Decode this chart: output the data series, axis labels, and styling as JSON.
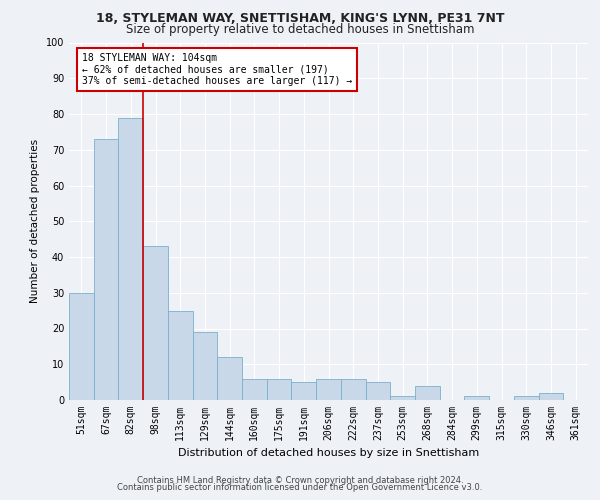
{
  "title_line1": "18, STYLEMAN WAY, SNETTISHAM, KING'S LYNN, PE31 7NT",
  "title_line2": "Size of property relative to detached houses in Snettisham",
  "xlabel": "Distribution of detached houses by size in Snettisham",
  "ylabel": "Number of detached properties",
  "categories": [
    "51sqm",
    "67sqm",
    "82sqm",
    "98sqm",
    "113sqm",
    "129sqm",
    "144sqm",
    "160sqm",
    "175sqm",
    "191sqm",
    "206sqm",
    "222sqm",
    "237sqm",
    "253sqm",
    "268sqm",
    "284sqm",
    "299sqm",
    "315sqm",
    "330sqm",
    "346sqm",
    "361sqm"
  ],
  "values": [
    30,
    73,
    79,
    43,
    25,
    19,
    12,
    6,
    6,
    5,
    6,
    6,
    5,
    1,
    4,
    0,
    1,
    0,
    1,
    2,
    0
  ],
  "bar_color": "#c8d8e8",
  "bar_edge_color": "#7ab0cc",
  "background_color": "#eef2f7",
  "grid_color": "#ffffff",
  "annotation_text": "18 STYLEMAN WAY: 104sqm\n← 62% of detached houses are smaller (197)\n37% of semi-detached houses are larger (117) →",
  "annotation_box_color": "#ffffff",
  "annotation_box_edge": "#cc0000",
  "vline_color": "#cc0000",
  "ylim": [
    0,
    100
  ],
  "yticks": [
    0,
    10,
    20,
    30,
    40,
    50,
    60,
    70,
    80,
    90,
    100
  ],
  "footer_line1": "Contains HM Land Registry data © Crown copyright and database right 2024.",
  "footer_line2": "Contains public sector information licensed under the Open Government Licence v3.0.",
  "title_fontsize": 9,
  "subtitle_fontsize": 8.5,
  "ylabel_fontsize": 7.5,
  "xlabel_fontsize": 8,
  "tick_fontsize": 7,
  "annot_fontsize": 7,
  "footer_fontsize": 6
}
